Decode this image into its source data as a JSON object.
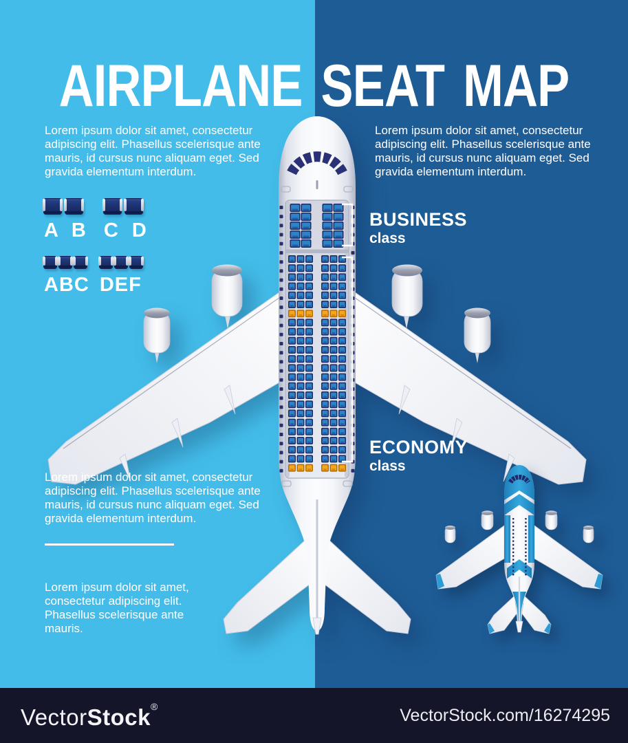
{
  "title": "AIRPLANE SEAT MAP",
  "paragraphs": {
    "top_left": "Lorem ipsum dolor sit amet, consectetur adipiscing elit. Phasellus scelerisque ante mauris, id cursus nunc aliquam eget. Sed gravida elementum interdum.",
    "top_right": "Lorem ipsum dolor sit amet, consectetur adipiscing elit. Phasellus scelerisque ante mauris, id cursus nunc aliquam eget. Sed gravida elementum interdum.",
    "bottom_left_1": "Lorem ipsum dolor sit amet, consectetur adipiscing elit. Phasellus scelerisque ante mauris, id cursus nunc aliquam eget. Sed gravida elementum interdum.",
    "bottom_left_2": "Lorem ipsum dolor sit amet, consectetur adipiscing elit. Phasellus scelerisque ante mauris."
  },
  "seat_legend": {
    "rows": [
      {
        "size": "large",
        "groups": [
          {
            "seats": 2,
            "label": "A B"
          },
          {
            "seats": 2,
            "label": "C D"
          }
        ]
      },
      {
        "size": "small",
        "groups": [
          {
            "seats": 3,
            "label": "ABC"
          },
          {
            "seats": 3,
            "label": "DEF"
          }
        ]
      }
    ]
  },
  "seat_map": {
    "business": {
      "label": "BUSINESS",
      "sub": "class",
      "rows": 5,
      "layout": "2-2",
      "seat_color": "blue"
    },
    "economy": {
      "label": "ECONOMY",
      "sub": "class",
      "rows": 24,
      "layout": "3-3",
      "seat_color": "blue",
      "exit_rows": [
        7,
        24
      ],
      "exit_color": "orange"
    },
    "windows_per_side": 30
  },
  "colors": {
    "bg_left": "#43BCE9",
    "bg_right": "#1E5C96",
    "footer_bg": "#151529",
    "seat_navy": "#1D2A66",
    "seat_blue": "#2F82C6",
    "seat_orange": "#F7A41F",
    "window_navy": "#262E6E",
    "fuselage_white": "#F6F7FA",
    "small_plane_blue": "#2E9BD4"
  },
  "footer": {
    "brand_light": "Vector",
    "brand_bold": "Stock",
    "reg": "®",
    "url": "VectorStock.com/16274295"
  }
}
